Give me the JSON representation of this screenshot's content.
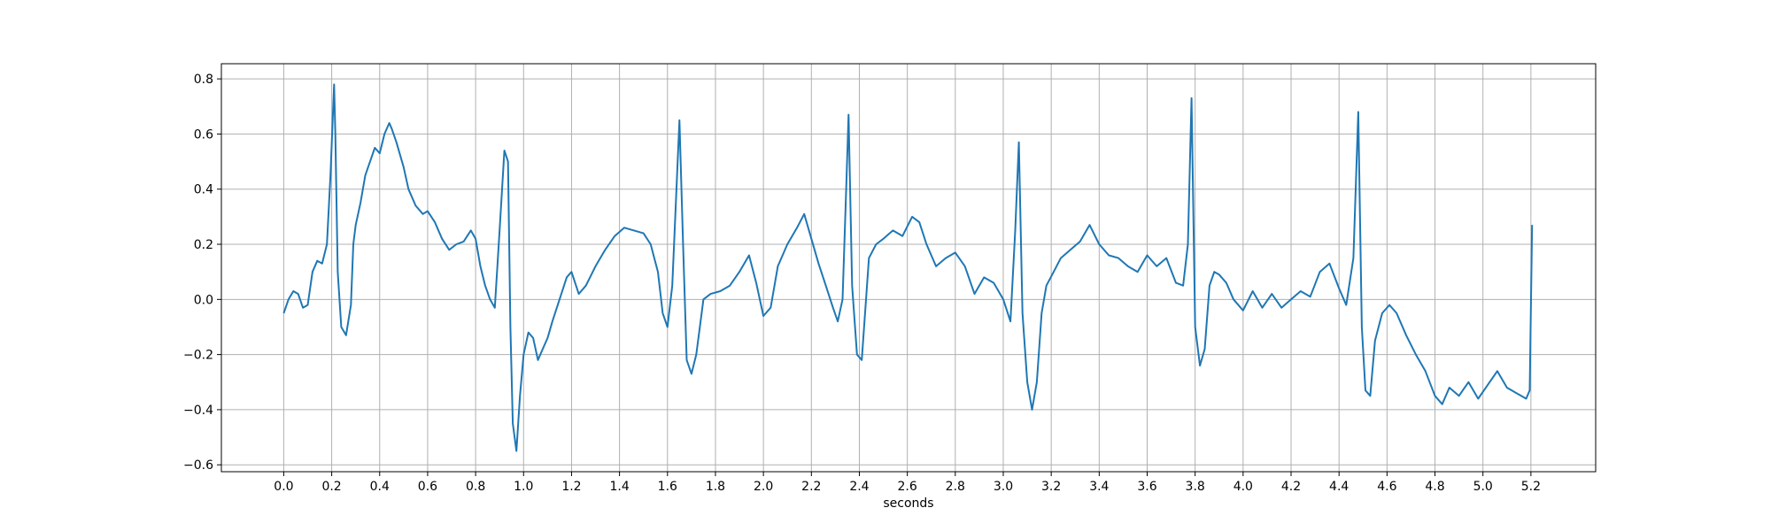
{
  "chart_data": {
    "type": "line",
    "title": "",
    "xlabel": "seconds",
    "ylabel": "",
    "xlim": [
      -0.26,
      5.47
    ],
    "ylim": [
      -0.625,
      0.855
    ],
    "grid": true,
    "x_ticks": [
      0.0,
      0.2,
      0.4,
      0.6,
      0.8,
      1.0,
      1.2,
      1.4,
      1.6,
      1.8,
      2.0,
      2.2,
      2.4,
      2.6,
      2.8,
      3.0,
      3.2,
      3.4,
      3.6,
      3.8,
      4.0,
      4.2,
      4.4,
      4.6,
      4.8,
      5.0,
      5.2
    ],
    "x_tick_labels": [
      "0.0",
      "0.2",
      "0.4",
      "0.6",
      "0.8",
      "1.0",
      "1.2",
      "1.4",
      "1.6",
      "1.8",
      "2.0",
      "2.2",
      "2.4",
      "2.6",
      "2.8",
      "3.0",
      "3.2",
      "3.4",
      "3.6",
      "3.8",
      "4.0",
      "4.2",
      "4.4",
      "4.6",
      "4.8",
      "5.0",
      "5.2"
    ],
    "y_ticks": [
      -0.6,
      -0.4,
      -0.2,
      0.0,
      0.2,
      0.4,
      0.6,
      0.8
    ],
    "y_tick_labels": [
      "−0.6",
      "−0.4",
      "−0.2",
      "0.0",
      "0.2",
      "0.4",
      "0.6",
      "0.8"
    ],
    "series": [
      {
        "color": "#1f77b4",
        "x": [
          0.0,
          0.02,
          0.04,
          0.06,
          0.08,
          0.1,
          0.12,
          0.14,
          0.16,
          0.18,
          0.195,
          0.21,
          0.215,
          0.225,
          0.24,
          0.26,
          0.28,
          0.29,
          0.3,
          0.32,
          0.34,
          0.36,
          0.38,
          0.4,
          0.42,
          0.44,
          0.45,
          0.47,
          0.5,
          0.52,
          0.55,
          0.58,
          0.6,
          0.63,
          0.66,
          0.69,
          0.72,
          0.75,
          0.78,
          0.8,
          0.82,
          0.84,
          0.86,
          0.88,
          0.9,
          0.92,
          0.935,
          0.945,
          0.955,
          0.97,
          0.985,
          1.0,
          1.02,
          1.04,
          1.06,
          1.08,
          1.1,
          1.12,
          1.15,
          1.18,
          1.2,
          1.23,
          1.26,
          1.3,
          1.34,
          1.38,
          1.42,
          1.46,
          1.5,
          1.53,
          1.56,
          1.58,
          1.6,
          1.62,
          1.64,
          1.65,
          1.665,
          1.68,
          1.7,
          1.72,
          1.75,
          1.78,
          1.82,
          1.86,
          1.9,
          1.94,
          1.97,
          2.0,
          2.03,
          2.06,
          2.1,
          2.14,
          2.17,
          2.2,
          2.23,
          2.26,
          2.29,
          2.31,
          2.33,
          2.345,
          2.355,
          2.37,
          2.39,
          2.41,
          2.44,
          2.47,
          2.5,
          2.54,
          2.58,
          2.62,
          2.65,
          2.68,
          2.72,
          2.76,
          2.8,
          2.84,
          2.88,
          2.92,
          2.96,
          3.0,
          3.03,
          3.05,
          3.065,
          3.08,
          3.1,
          3.12,
          3.14,
          3.16,
          3.18,
          3.21,
          3.24,
          3.28,
          3.32,
          3.36,
          3.4,
          3.44,
          3.48,
          3.52,
          3.56,
          3.6,
          3.64,
          3.68,
          3.72,
          3.75,
          3.77,
          3.785,
          3.8,
          3.82,
          3.84,
          3.86,
          3.88,
          3.9,
          3.93,
          3.96,
          4.0,
          4.04,
          4.08,
          4.12,
          4.16,
          4.2,
          4.24,
          4.28,
          4.32,
          4.36,
          4.4,
          4.43,
          4.46,
          4.48,
          4.495,
          4.51,
          4.53,
          4.55,
          4.58,
          4.61,
          4.64,
          4.68,
          4.72,
          4.76,
          4.8,
          4.83,
          4.86,
          4.9,
          4.94,
          4.98,
          5.02,
          5.06,
          5.1,
          5.14,
          5.18,
          5.195,
          5.205
        ],
        "values": [
          -0.05,
          0.0,
          0.03,
          0.02,
          -0.03,
          -0.02,
          0.1,
          0.14,
          0.13,
          0.2,
          0.45,
          0.78,
          0.6,
          0.1,
          -0.1,
          -0.13,
          -0.02,
          0.2,
          0.27,
          0.35,
          0.45,
          0.5,
          0.55,
          0.53,
          0.6,
          0.64,
          0.62,
          0.57,
          0.48,
          0.4,
          0.34,
          0.31,
          0.32,
          0.28,
          0.22,
          0.18,
          0.2,
          0.21,
          0.25,
          0.22,
          0.12,
          0.05,
          0.0,
          -0.03,
          0.25,
          0.54,
          0.5,
          -0.1,
          -0.45,
          -0.55,
          -0.35,
          -0.2,
          -0.12,
          -0.14,
          -0.22,
          -0.18,
          -0.14,
          -0.08,
          0.0,
          0.08,
          0.1,
          0.02,
          0.05,
          0.12,
          0.18,
          0.23,
          0.26,
          0.25,
          0.24,
          0.2,
          0.1,
          -0.05,
          -0.1,
          0.05,
          0.45,
          0.65,
          0.2,
          -0.22,
          -0.27,
          -0.2,
          0.0,
          0.02,
          0.03,
          0.05,
          0.1,
          0.16,
          0.06,
          -0.06,
          -0.03,
          0.12,
          0.2,
          0.26,
          0.31,
          0.22,
          0.13,
          0.05,
          -0.03,
          -0.08,
          0.0,
          0.4,
          0.67,
          0.05,
          -0.2,
          -0.22,
          0.15,
          0.2,
          0.22,
          0.25,
          0.23,
          0.3,
          0.28,
          0.2,
          0.12,
          0.15,
          0.17,
          0.12,
          0.02,
          0.08,
          0.06,
          0.0,
          -0.08,
          0.25,
          0.57,
          -0.05,
          -0.3,
          -0.4,
          -0.3,
          -0.05,
          0.05,
          0.1,
          0.15,
          0.18,
          0.21,
          0.27,
          0.2,
          0.16,
          0.15,
          0.12,
          0.1,
          0.16,
          0.12,
          0.15,
          0.06,
          0.05,
          0.2,
          0.73,
          -0.1,
          -0.24,
          -0.18,
          0.05,
          0.1,
          0.09,
          0.06,
          0.0,
          -0.04,
          0.03,
          -0.03,
          0.02,
          -0.03,
          0.0,
          0.03,
          0.01,
          0.1,
          0.13,
          0.04,
          -0.02,
          0.15,
          0.68,
          -0.1,
          -0.33,
          -0.35,
          -0.15,
          -0.05,
          -0.02,
          -0.05,
          -0.13,
          -0.2,
          -0.26,
          -0.35,
          -0.38,
          -0.32,
          -0.35,
          -0.3,
          -0.36,
          -0.31,
          -0.26,
          -0.32,
          -0.34,
          -0.36,
          -0.33,
          0.27
        ]
      }
    ]
  }
}
